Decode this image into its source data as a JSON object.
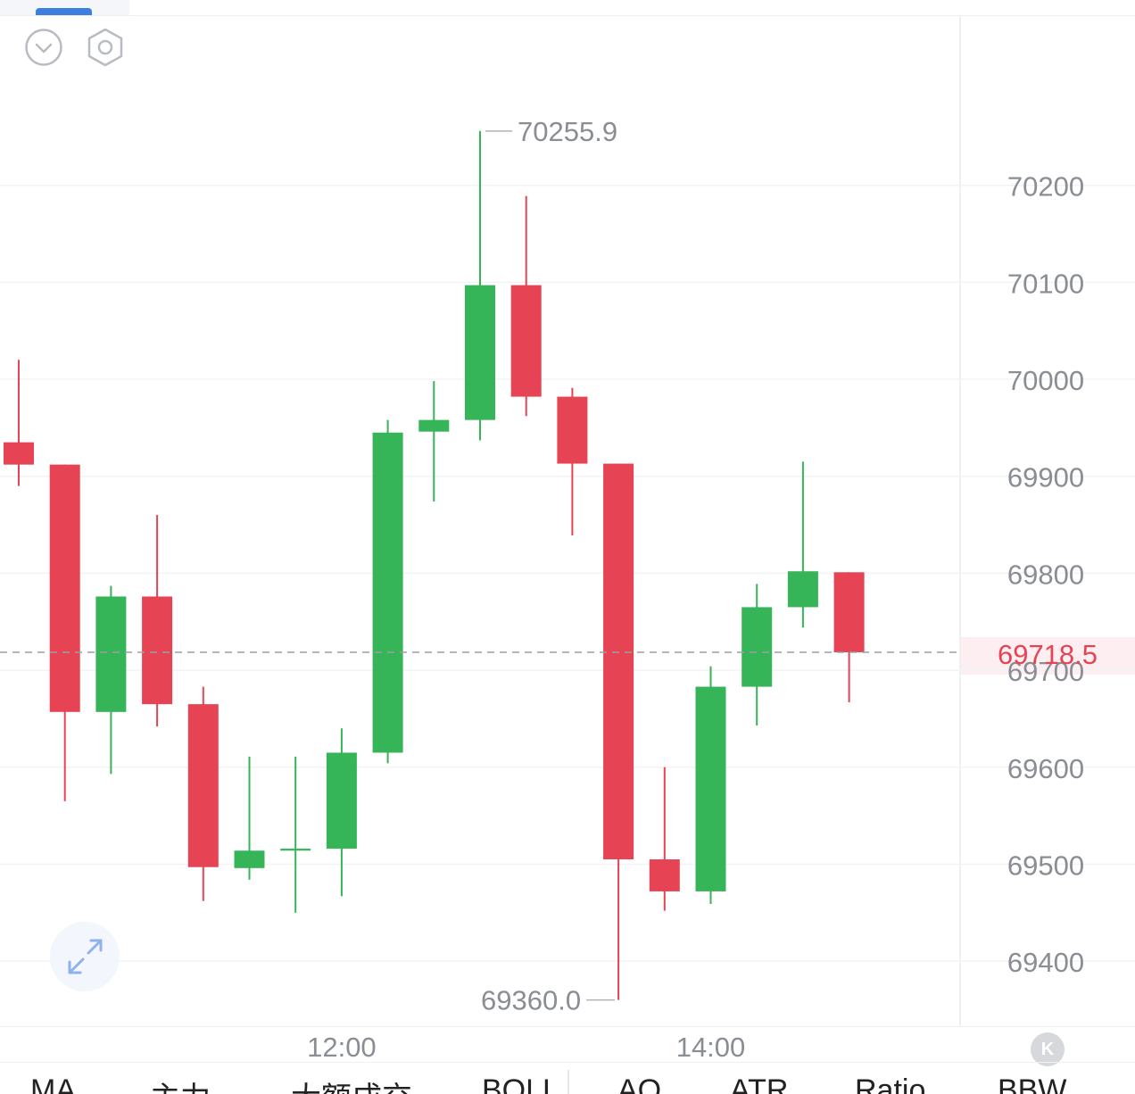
{
  "chart_data": {
    "type": "candlestick",
    "candles": [
      {
        "open": 69935,
        "high": 70020,
        "low": 69890,
        "close": 69912
      },
      {
        "open": 69912,
        "high": 69912,
        "low": 69565,
        "close": 69657
      },
      {
        "open": 69657,
        "high": 69787,
        "low": 69593,
        "close": 69776
      },
      {
        "open": 69776,
        "high": 69860,
        "low": 69642,
        "close": 69665
      },
      {
        "open": 69665,
        "high": 69683,
        "low": 69462,
        "close": 69497
      },
      {
        "open": 69496,
        "high": 69611,
        "low": 69484,
        "close": 69514
      },
      {
        "open": 69514,
        "high": 69611,
        "low": 69450,
        "close": 69516
      },
      {
        "open": 69516,
        "high": 69640,
        "low": 69467,
        "close": 69615
      },
      {
        "open": 69615,
        "high": 69958,
        "low": 69604,
        "close": 69945
      },
      {
        "open": 69946,
        "high": 69998,
        "low": 69874,
        "close": 69958
      },
      {
        "open": 69958,
        "high": 70255.9,
        "low": 69937,
        "close": 70097
      },
      {
        "open": 70097,
        "high": 70189,
        "low": 69962,
        "close": 69982
      },
      {
        "open": 69982,
        "high": 69991,
        "low": 69839,
        "close": 69913
      },
      {
        "open": 69913,
        "high": 69913,
        "low": 69360.0,
        "close": 69505
      },
      {
        "open": 69505,
        "high": 69600,
        "low": 69452,
        "close": 69472
      },
      {
        "open": 69472,
        "high": 69704,
        "low": 69459,
        "close": 69683
      },
      {
        "open": 69683,
        "high": 69789,
        "low": 69643,
        "close": 69765
      },
      {
        "open": 69765,
        "high": 69915,
        "low": 69744,
        "close": 69802
      },
      {
        "open": 69801,
        "high": 69801,
        "low": 69667,
        "close": 69718.5
      }
    ],
    "y_ticks": [
      "70200",
      "70100",
      "70000",
      "69900",
      "69800",
      "69700",
      "69600",
      "69500",
      "69400"
    ],
    "ylim": [
      69333,
      70391
    ],
    "x_ticks": [
      {
        "label": "12:00",
        "index": 7
      },
      {
        "label": "14:00",
        "index": 15
      }
    ],
    "high_label": "70255.9",
    "low_label": "69360.0",
    "last_price_label": "69718.5",
    "last_price": 69718.5,
    "up_color": "#36b458",
    "down_color": "#e64454",
    "last_price_color": "#e64454",
    "grid": true
  },
  "indicators": [
    "MA",
    "主力",
    "大额成交",
    "BOLL",
    "AO",
    "ATR",
    "Ratio",
    "BBW"
  ],
  "icons": {
    "collapse": "chevron-down-circle-icon",
    "settings": "hexagon-settings-icon",
    "expand": "expand-arrows-icon",
    "k": "k-icon"
  },
  "k_button_label": "K"
}
